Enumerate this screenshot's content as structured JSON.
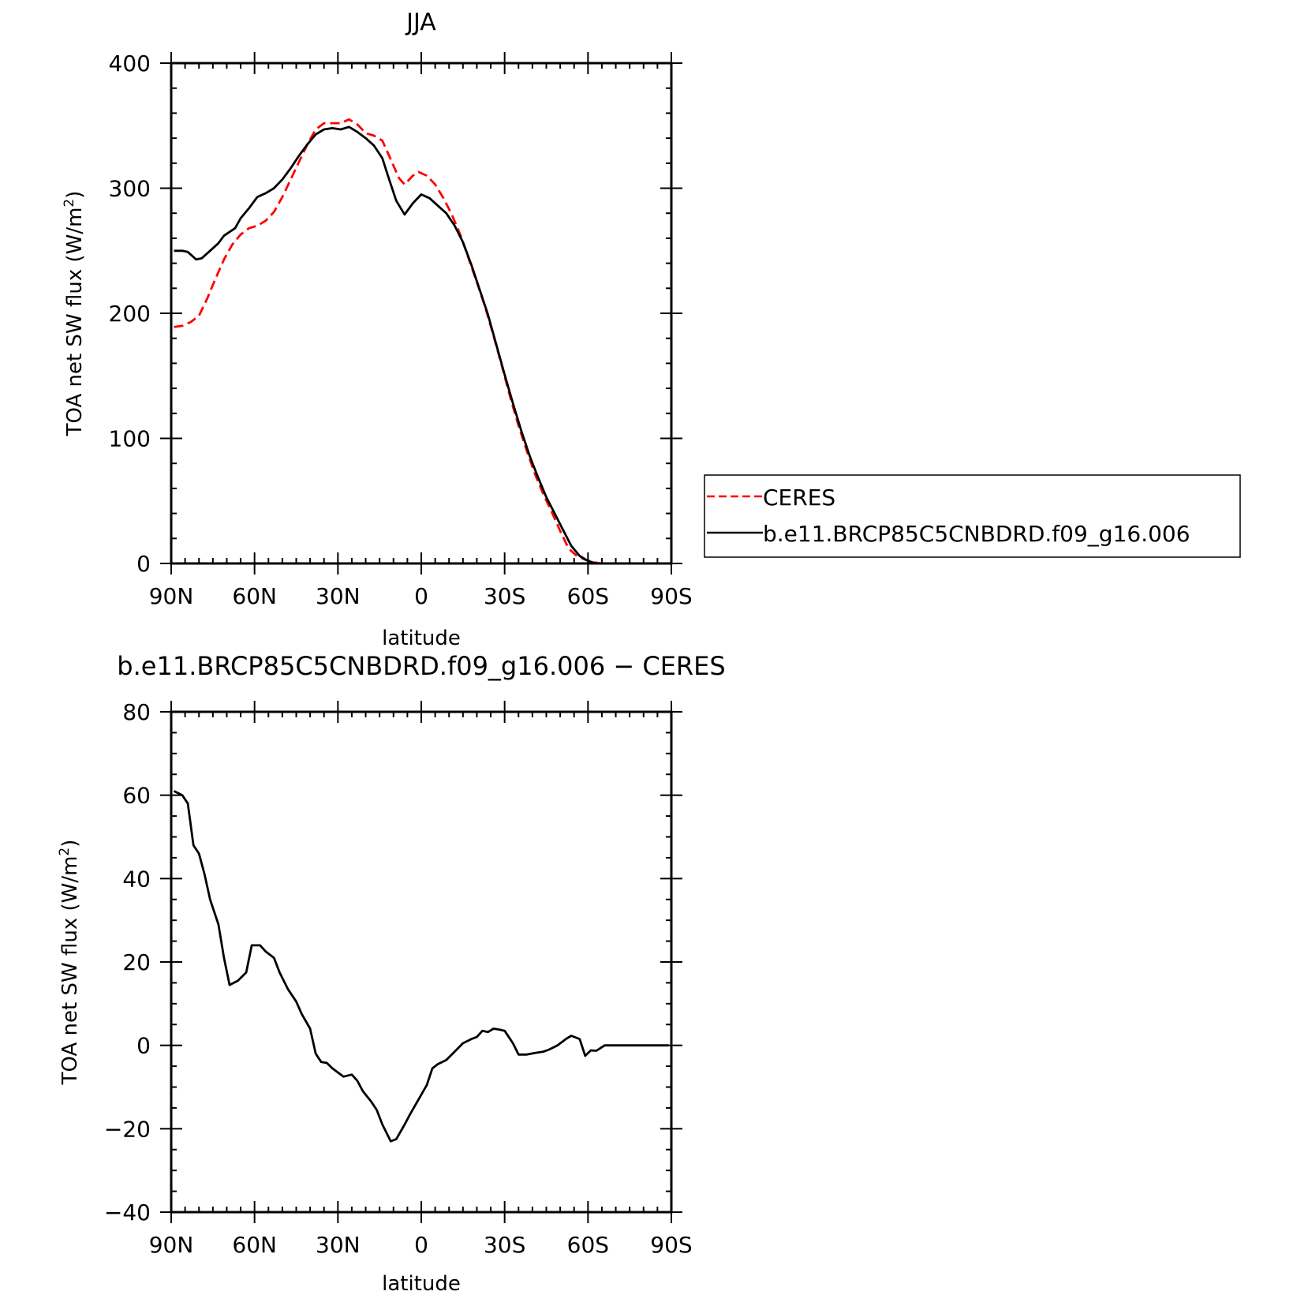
{
  "chart_data": [
    {
      "type": "line",
      "title": "JJA",
      "xlabel": "latitude",
      "ylabel": "TOA net SW flux (W/m",
      "ylabel_sup": "2",
      "ylabel_close": ")",
      "xlim": [
        90,
        -90
      ],
      "ylim": [
        0,
        400
      ],
      "x_ticks": [
        {
          "value": 90,
          "label": "90N"
        },
        {
          "value": 60,
          "label": "60N"
        },
        {
          "value": 30,
          "label": "30N"
        },
        {
          "value": 0,
          "label": "0"
        },
        {
          "value": -30,
          "label": "30S"
        },
        {
          "value": -60,
          "label": "60S"
        },
        {
          "value": -90,
          "label": "90S"
        }
      ],
      "y_ticks": [
        {
          "value": 0,
          "label": "0"
        },
        {
          "value": 100,
          "label": "100"
        },
        {
          "value": 200,
          "label": "200"
        },
        {
          "value": 300,
          "label": "300"
        },
        {
          "value": 400,
          "label": "400"
        }
      ],
      "legend": {
        "placement": "right",
        "entries": [
          {
            "label": "CERES",
            "color": "#ff0000",
            "dash": true
          },
          {
            "label": "b.e11.BRCP85C5CNBDRD.f09_g16.006",
            "color": "#000000",
            "dash": false
          }
        ]
      },
      "series": [
        {
          "name": "CERES",
          "color": "#ff0000",
          "dash": true,
          "x": [
            89,
            86,
            83,
            80,
            77,
            74,
            71,
            68,
            65,
            62,
            59,
            56,
            53,
            50,
            47,
            44,
            41,
            38,
            35,
            32,
            29,
            26,
            23,
            20,
            17,
            14,
            11,
            8,
            6,
            3,
            1,
            -2,
            -5,
            -8,
            -11,
            -14,
            -17,
            -20,
            -23,
            -26,
            -29,
            -32,
            -35,
            -38,
            -41,
            -44,
            -47,
            -50,
            -53,
            -56,
            -59,
            -62,
            -65,
            -68,
            -71,
            -74,
            -77,
            -80,
            -83,
            -86,
            -89
          ],
          "y": [
            189,
            190,
            193,
            198,
            212,
            228,
            243,
            255,
            263,
            268,
            270,
            274,
            281,
            293,
            307,
            321,
            335,
            347,
            352,
            352,
            352,
            355,
            351,
            344,
            342,
            338,
            323,
            308,
            303,
            310,
            313,
            310,
            303,
            292,
            279,
            263,
            244,
            225,
            205,
            182,
            158,
            133,
            110,
            90,
            71,
            55,
            41,
            26,
            12,
            6,
            3,
            1,
            0,
            0,
            0,
            0,
            0,
            0,
            0,
            0,
            0
          ]
        },
        {
          "name": "b.e11.BRCP85C5CNBDRD.f09_g16.006",
          "color": "#000000",
          "dash": false,
          "x": [
            89,
            86,
            84,
            81,
            79,
            76,
            73,
            71,
            67,
            65,
            62,
            59,
            56,
            53,
            50,
            47,
            44,
            41,
            38,
            35,
            32,
            29,
            26,
            23,
            20,
            17,
            14,
            12,
            9,
            6,
            3,
            0,
            -3,
            -6,
            -9,
            -12,
            -15,
            -18,
            -21,
            -24,
            -27,
            -30,
            -33,
            -36,
            -39,
            -42,
            -45,
            -48,
            -51,
            -54,
            -57,
            -60,
            -63,
            -66,
            -69,
            -72,
            -75,
            -78,
            -81,
            -84,
            -87,
            -89
          ],
          "y": [
            250,
            250,
            249,
            243,
            244,
            250,
            256,
            262,
            268,
            276,
            284,
            293,
            296,
            300,
            307,
            316,
            326,
            335,
            343,
            347,
            348,
            347,
            349,
            345,
            340,
            334,
            324,
            310,
            290,
            279,
            288,
            295,
            292,
            286,
            280,
            270,
            257,
            239,
            219,
            199,
            175,
            151,
            128,
            106,
            86,
            69,
            53,
            40,
            27,
            14,
            6,
            2,
            0,
            0,
            0,
            0,
            0,
            0,
            0,
            0,
            0,
            0
          ]
        }
      ]
    },
    {
      "type": "line",
      "title": "b.e11.BRCP85C5CNBDRD.f09_g16.006 − CERES",
      "xlabel": "latitude",
      "ylabel": "TOA net SW flux (W/m",
      "ylabel_sup": "2",
      "ylabel_close": ")",
      "xlim": [
        90,
        -90
      ],
      "ylim": [
        -40,
        80
      ],
      "x_ticks": [
        {
          "value": 90,
          "label": "90N"
        },
        {
          "value": 60,
          "label": "60N"
        },
        {
          "value": 30,
          "label": "30N"
        },
        {
          "value": 0,
          "label": "0"
        },
        {
          "value": -30,
          "label": "30S"
        },
        {
          "value": -60,
          "label": "60S"
        },
        {
          "value": -90,
          "label": "90S"
        }
      ],
      "y_ticks": [
        {
          "value": -40,
          "label": "−40"
        },
        {
          "value": -20,
          "label": "−20"
        },
        {
          "value": 0,
          "label": "0"
        },
        {
          "value": 20,
          "label": "20"
        },
        {
          "value": 40,
          "label": "40"
        },
        {
          "value": 60,
          "label": "60"
        },
        {
          "value": 80,
          "label": "80"
        }
      ],
      "series": [
        {
          "color": "#000000",
          "dash": false,
          "x": [
            89,
            86,
            84,
            82,
            80,
            78,
            76,
            73,
            71,
            69,
            66,
            63,
            61,
            58,
            56,
            53,
            51,
            48,
            45,
            43,
            40,
            38,
            36,
            34,
            32,
            30,
            28,
            25,
            23,
            21,
            18,
            16,
            14,
            11,
            9,
            6,
            4,
            1,
            -2,
            -4,
            -6,
            -9,
            -12,
            -15,
            -18,
            -20,
            -22,
            -24,
            -26,
            -28,
            -30,
            -33,
            -35,
            -38,
            -41,
            -44,
            -46,
            -49,
            -52,
            -54,
            -57,
            -59,
            -61,
            -63,
            -66,
            -68,
            -70,
            -73,
            -76,
            -80,
            -84,
            -89
          ],
          "y": [
            61,
            60,
            58,
            48,
            46,
            41,
            35,
            29,
            21,
            14.5,
            15.5,
            17.5,
            24,
            24,
            22.5,
            21,
            17.5,
            13.5,
            10.5,
            7.5,
            4,
            -2,
            -4,
            -4.2,
            -5.5,
            -6.5,
            -7.5,
            -7,
            -8.5,
            -11,
            -13.5,
            -15.5,
            -19,
            -23,
            -22.5,
            -19,
            -16.5,
            -13,
            -9.5,
            -5.5,
            -4.5,
            -3.5,
            -1.5,
            0.5,
            1.5,
            2,
            3.5,
            3.2,
            4,
            3.8,
            3.5,
            0.5,
            -2.2,
            -2.2,
            -1.8,
            -1.5,
            -1,
            0,
            1.5,
            2.3,
            1.5,
            -2.5,
            -1.2,
            -1.3,
            0,
            0,
            0,
            0,
            0,
            0,
            0,
            0
          ]
        }
      ]
    }
  ]
}
